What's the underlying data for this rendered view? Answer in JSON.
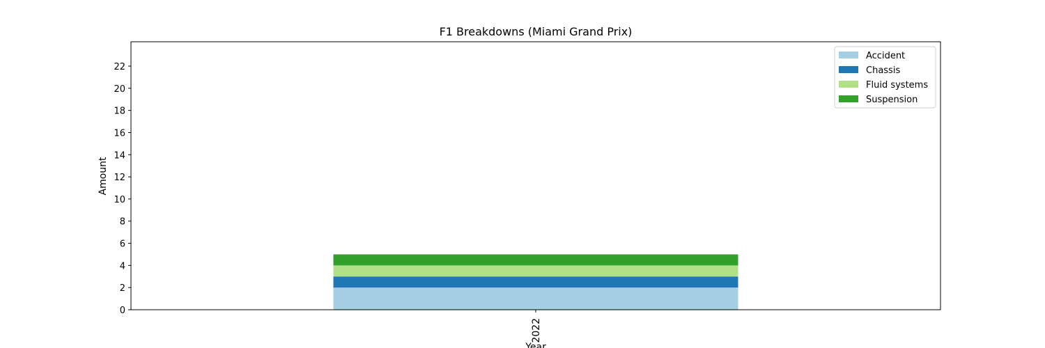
{
  "chart_data": {
    "type": "bar",
    "stacked": true,
    "title": "F1 Breakdowns (Miami Grand Prix)",
    "xlabel": "Year",
    "ylabel": "Amount",
    "categories": [
      "2022"
    ],
    "ylim": [
      0,
      24.2
    ],
    "yticks": [
      0,
      2,
      4,
      6,
      8,
      10,
      12,
      14,
      16,
      18,
      20,
      22
    ],
    "grid": false,
    "legend_position": "top-right",
    "series": [
      {
        "name": "Accident",
        "values": [
          2
        ],
        "color": "#a6cee3"
      },
      {
        "name": "Chassis",
        "values": [
          1
        ],
        "color": "#1f78b4"
      },
      {
        "name": "Fluid systems",
        "values": [
          1
        ],
        "color": "#b2df8a"
      },
      {
        "name": "Suspension",
        "values": [
          1
        ],
        "color": "#33a02c"
      }
    ]
  }
}
